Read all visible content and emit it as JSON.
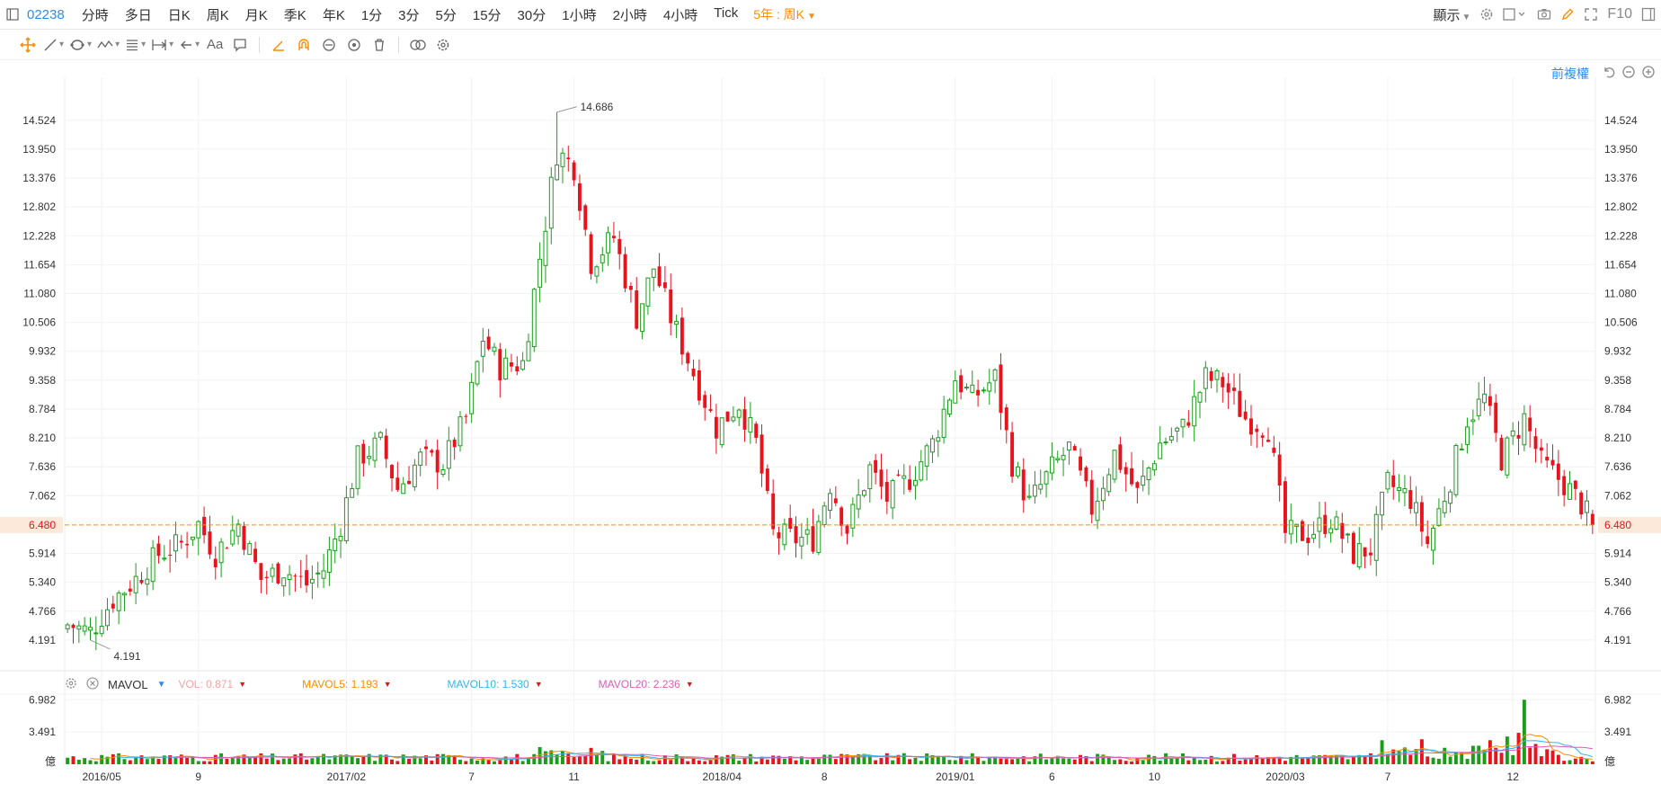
{
  "toolbar": {
    "stock_code": "02238",
    "periods": [
      "分時",
      "多日",
      "日K",
      "周K",
      "月K",
      "季K",
      "年K",
      "1分",
      "3分",
      "5分",
      "15分",
      "30分",
      "1小時",
      "2小時",
      "4小時",
      "Tick"
    ],
    "range_label": "5年 : 周K",
    "display_label": "顯示",
    "f10_label": "F10"
  },
  "tools": {
    "text_tool_label": "Aa"
  },
  "adjust_label": "前複權",
  "vol_legend": {
    "name": "MAVOL",
    "vol": "VOL: 0.871",
    "mavol5": "MAVOL5: 1.193",
    "mavol10": "MAVOL10: 1.530",
    "mavol20": "MAVOL20: 2.236"
  },
  "colors": {
    "up": "#1a9e1a",
    "down": "#e8141c",
    "accent": "#ff8c00",
    "link": "#2d8cf0",
    "ma5": "#ff8c00",
    "ma10": "#2db7f5",
    "ma20": "#e05cb5"
  },
  "chart_data": [
    {
      "type": "candlestick",
      "title": "",
      "y_ticks": [
        "14.524",
        "13.950",
        "13.376",
        "12.802",
        "12.228",
        "11.654",
        "11.080",
        "10.506",
        "9.932",
        "9.358",
        "8.784",
        "8.210",
        "7.636",
        "7.062",
        "6.480",
        "5.914",
        "5.340",
        "4.766",
        "4.191"
      ],
      "ylim": [
        3.6,
        15.2
      ],
      "x_tick_labels": [
        "2016/05",
        "9",
        "2017/02",
        "7",
        "11",
        "2018/04",
        "8",
        "2019/01",
        "6",
        "10",
        "2020/03",
        "7",
        "12"
      ],
      "x_tick_index": [
        6,
        23,
        49,
        71,
        89,
        115,
        133,
        156,
        173,
        191,
        214,
        232,
        254
      ],
      "current_price": 6.48,
      "max_label": "14.686",
      "min_label": "4.191",
      "max_index": 86,
      "min_index": 4,
      "close_anchors": [
        [
          0,
          4.5
        ],
        [
          4,
          4.35
        ],
        [
          8,
          5.0
        ],
        [
          12,
          5.4
        ],
        [
          16,
          5.9
        ],
        [
          20,
          6.1
        ],
        [
          23,
          6.5
        ],
        [
          26,
          5.9
        ],
        [
          30,
          6.5
        ],
        [
          34,
          5.4
        ],
        [
          38,
          5.6
        ],
        [
          42,
          5.3
        ],
        [
          45,
          5.6
        ],
        [
          48,
          6.5
        ],
        [
          51,
          7.8
        ],
        [
          55,
          8.1
        ],
        [
          58,
          7.2
        ],
        [
          62,
          7.8
        ],
        [
          66,
          7.7
        ],
        [
          70,
          8.6
        ],
        [
          73,
          10.2
        ],
        [
          76,
          9.6
        ],
        [
          80,
          9.7
        ],
        [
          84,
          12.5
        ],
        [
          86,
          13.9
        ],
        [
          89,
          13.6
        ],
        [
          92,
          11.7
        ],
        [
          96,
          12.2
        ],
        [
          100,
          10.6
        ],
        [
          103,
          11.6
        ],
        [
          106,
          10.6
        ],
        [
          110,
          9.5
        ],
        [
          114,
          8.4
        ],
        [
          118,
          8.9
        ],
        [
          121,
          8.1
        ],
        [
          124,
          6.3
        ],
        [
          128,
          6.2
        ],
        [
          131,
          6.2
        ],
        [
          134,
          7.3
        ],
        [
          137,
          6.4
        ],
        [
          141,
          7.6
        ],
        [
          144,
          7.0
        ],
        [
          148,
          7.4
        ],
        [
          152,
          8.1
        ],
        [
          156,
          9.4
        ],
        [
          159,
          9.0
        ],
        [
          163,
          9.4
        ],
        [
          166,
          7.7
        ],
        [
          169,
          6.9
        ],
        [
          173,
          7.6
        ],
        [
          176,
          8.0
        ],
        [
          180,
          6.8
        ],
        [
          184,
          7.9
        ],
        [
          188,
          7.1
        ],
        [
          192,
          8.1
        ],
        [
          196,
          8.4
        ],
        [
          200,
          9.4
        ],
        [
          203,
          9.3
        ],
        [
          207,
          8.6
        ],
        [
          211,
          8.4
        ],
        [
          214,
          6.3
        ],
        [
          218,
          6.3
        ],
        [
          222,
          6.6
        ],
        [
          226,
          5.9
        ],
        [
          229,
          6.0
        ],
        [
          232,
          7.3
        ],
        [
          236,
          7.0
        ],
        [
          239,
          6.1
        ],
        [
          243,
          7.4
        ],
        [
          246,
          8.6
        ],
        [
          249,
          9.0
        ],
        [
          252,
          7.8
        ],
        [
          256,
          8.6
        ],
        [
          259,
          7.7
        ],
        [
          263,
          7.3
        ],
        [
          266,
          6.9
        ],
        [
          268,
          6.48
        ]
      ],
      "volume": {
        "ylim": [
          0,
          7.3
        ],
        "y_ticks": [
          "6.982",
          "3.491",
          "億"
        ],
        "spike_index": 256,
        "spike_value": 6.982,
        "second_index": 255,
        "second_value": 3.4
      }
    }
  ]
}
